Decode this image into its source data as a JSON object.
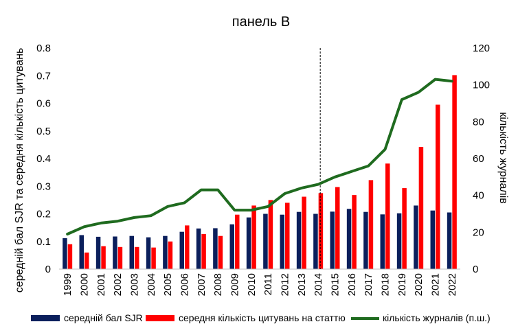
{
  "colors": {
    "sjr": "#0b1f5c",
    "cites": "#ff0000",
    "journals": "#1f6b1f",
    "vline": "#000000"
  },
  "chart_data": {
    "type": "bar",
    "title": "панель В",
    "ylabel_left": "середній бал SJR та середня кількість цитувань",
    "ylabel_right": "кількість журналів",
    "categories": [
      "1999",
      "2000",
      "2001",
      "2002",
      "2003",
      "2004",
      "2005",
      "2006",
      "2007",
      "2008",
      "2009",
      "2010",
      "2011",
      "2012",
      "2013",
      "2014",
      "2015",
      "2016",
      "2017",
      "2018",
      "2019",
      "2020",
      "2021",
      "2022"
    ],
    "left_axis": {
      "min": 0,
      "max": 0.8,
      "ticks": [
        "0",
        "0.1",
        "0.2",
        "0.3",
        "0.4",
        "0.5",
        "0.6",
        "0.7",
        "0.8"
      ]
    },
    "right_axis": {
      "min": 0,
      "max": 120,
      "ticks": [
        "0",
        "20",
        "40",
        "60",
        "80",
        "100",
        "120"
      ]
    },
    "grid": false,
    "vertical_line_at": "2014",
    "legend_position": "bottom",
    "series": [
      {
        "name": "середній бал SJR",
        "type": "bar",
        "axis": "left",
        "values": [
          0.112,
          0.123,
          0.117,
          0.118,
          0.12,
          0.115,
          0.12,
          0.135,
          0.147,
          0.148,
          0.162,
          0.187,
          0.2,
          0.197,
          0.207,
          0.2,
          0.208,
          0.218,
          0.207,
          0.198,
          0.202,
          0.23,
          0.212,
          0.205
        ]
      },
      {
        "name": "середня кількість цитувань на статтю",
        "type": "bar",
        "axis": "left",
        "values": [
          0.09,
          0.06,
          0.083,
          0.08,
          0.08,
          0.078,
          0.1,
          0.158,
          0.127,
          0.12,
          0.197,
          0.23,
          0.25,
          0.24,
          0.262,
          0.275,
          0.297,
          0.268,
          0.322,
          0.382,
          0.293,
          0.442,
          0.595,
          0.702
        ]
      },
      {
        "name": "кількість журналів (п.ш.)",
        "type": "line",
        "axis": "right",
        "values": [
          19,
          23,
          25,
          26,
          28,
          29,
          34,
          36,
          43,
          43,
          32,
          32,
          34,
          41,
          44,
          46,
          50,
          53,
          56,
          65,
          92,
          96,
          103,
          102
        ]
      }
    ]
  }
}
